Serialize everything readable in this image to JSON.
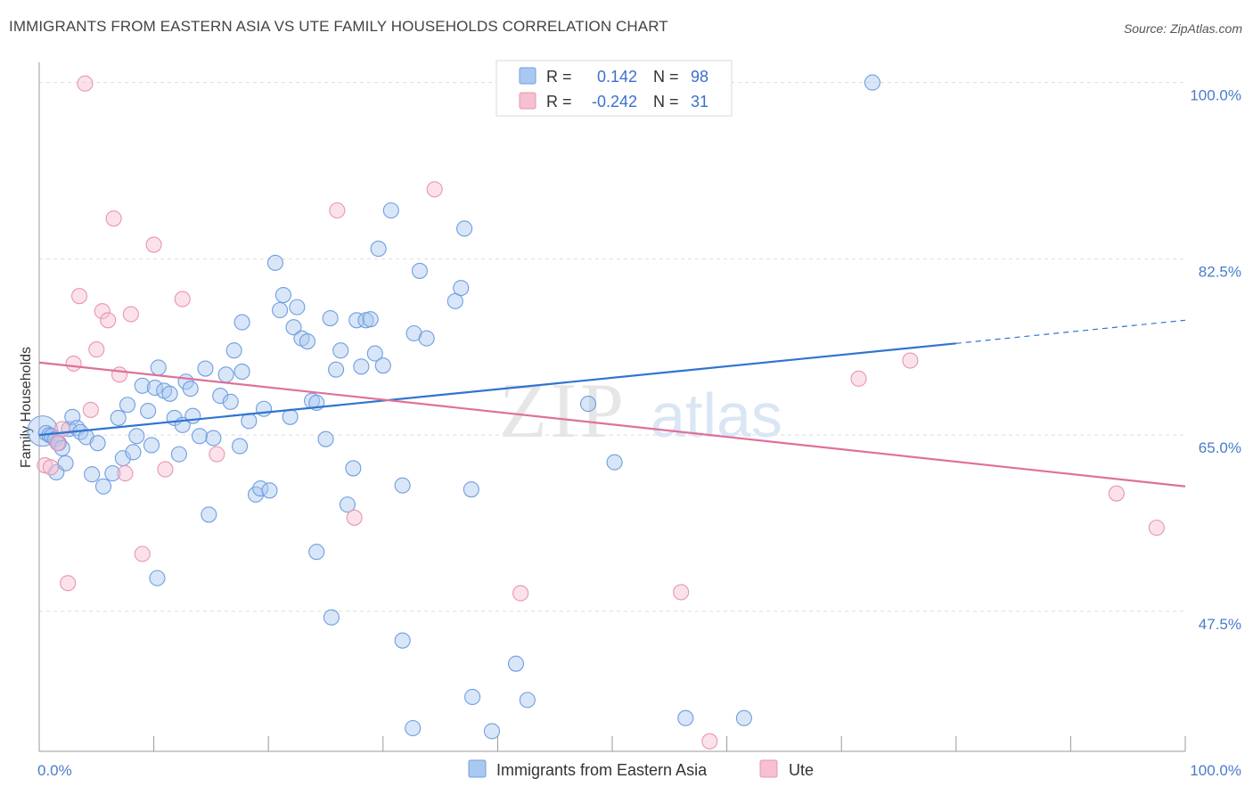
{
  "title": "IMMIGRANTS FROM EASTERN ASIA VS UTE FAMILY HOUSEHOLDS CORRELATION CHART",
  "source": "Source: ZipAtlas.com",
  "watermark": {
    "zip": "ZIP",
    "atlas": "atlas"
  },
  "colors": {
    "blue_fill": "#a9c8f0",
    "blue_stroke": "#6f9ee0",
    "blue_line": "#2f74d0",
    "pink_fill": "#f7bfd0",
    "pink_stroke": "#e895b0",
    "pink_line": "#e0709a",
    "grid": "#dddddd",
    "tick_label": "#4a7cc9"
  },
  "legend": {
    "rows": [
      {
        "r_label": "R =",
        "r_value": "0.142",
        "n_label": "N =",
        "n_value": "98",
        "color": "blue"
      },
      {
        "r_label": "R =",
        "r_value": "-0.242",
        "n_label": "N =",
        "n_value": "31",
        "color": "pink"
      }
    ]
  },
  "chart_data": {
    "type": "scatter",
    "xlabel": "",
    "ylabel": "Family Households",
    "x_ticks": [
      "0.0%",
      "100.0%"
    ],
    "y_ticks": [
      {
        "value": 47.5,
        "label": "47.5%"
      },
      {
        "value": 65.0,
        "label": "65.0%"
      },
      {
        "value": 82.5,
        "label": "82.5%"
      },
      {
        "value": 100.0,
        "label": "100.0%"
      }
    ],
    "xlim": [
      0,
      100
    ],
    "ylim": [
      33.6,
      102
    ],
    "series": [
      {
        "name": "Immigrants from Eastern Asia",
        "color": "blue",
        "trend": {
          "x0": 0,
          "y0": 65.0,
          "x1": 80,
          "y1": 74.1,
          "dash_to_x": 100,
          "dash_to_y": 76.4
        },
        "points": [
          [
            0.3,
            65.4
          ],
          [
            0.6,
            65.2
          ],
          [
            0.9,
            65.0
          ],
          [
            1.1,
            64.9
          ],
          [
            1.4,
            64.6
          ],
          [
            1.7,
            64.2
          ],
          [
            2.0,
            63.7
          ],
          [
            1.5,
            61.3
          ],
          [
            2.3,
            62.2
          ],
          [
            2.6,
            65.6
          ],
          [
            2.9,
            66.8
          ],
          [
            3.3,
            65.7
          ],
          [
            3.6,
            65.3
          ],
          [
            4.1,
            64.8
          ],
          [
            4.6,
            61.1
          ],
          [
            5.1,
            64.2
          ],
          [
            5.6,
            59.9
          ],
          [
            6.4,
            61.2
          ],
          [
            6.9,
            66.7
          ],
          [
            7.3,
            62.7
          ],
          [
            7.7,
            68.0
          ],
          [
            8.2,
            63.3
          ],
          [
            8.5,
            64.9
          ],
          [
            9.0,
            69.9
          ],
          [
            9.5,
            67.4
          ],
          [
            9.8,
            64.0
          ],
          [
            10.1,
            69.7
          ],
          [
            10.4,
            71.7
          ],
          [
            10.9,
            69.4
          ],
          [
            11.4,
            69.1
          ],
          [
            11.8,
            66.7
          ],
          [
            12.2,
            63.1
          ],
          [
            12.5,
            66.0
          ],
          [
            12.8,
            70.3
          ],
          [
            13.2,
            69.6
          ],
          [
            13.4,
            66.9
          ],
          [
            14.0,
            64.9
          ],
          [
            14.5,
            71.6
          ],
          [
            14.8,
            57.1
          ],
          [
            15.2,
            64.7
          ],
          [
            15.8,
            68.9
          ],
          [
            16.3,
            71.0
          ],
          [
            16.7,
            68.3
          ],
          [
            17.0,
            73.4
          ],
          [
            17.5,
            63.9
          ],
          [
            17.7,
            76.2
          ],
          [
            18.3,
            66.4
          ],
          [
            18.9,
            59.1
          ],
          [
            19.3,
            59.7
          ],
          [
            19.6,
            67.6
          ],
          [
            20.1,
            59.5
          ],
          [
            20.6,
            82.1
          ],
          [
            21.0,
            77.4
          ],
          [
            21.3,
            78.9
          ],
          [
            21.9,
            66.8
          ],
          [
            22.2,
            75.7
          ],
          [
            22.5,
            77.7
          ],
          [
            22.9,
            74.6
          ],
          [
            23.4,
            74.3
          ],
          [
            23.8,
            68.4
          ],
          [
            24.2,
            68.2
          ],
          [
            25.0,
            64.6
          ],
          [
            25.4,
            76.6
          ],
          [
            25.9,
            71.5
          ],
          [
            26.3,
            73.4
          ],
          [
            26.9,
            58.1
          ],
          [
            27.4,
            61.7
          ],
          [
            27.7,
            76.4
          ],
          [
            28.1,
            71.8
          ],
          [
            28.5,
            76.4
          ],
          [
            28.9,
            76.5
          ],
          [
            29.3,
            73.1
          ],
          [
            29.6,
            83.5
          ],
          [
            30.0,
            71.9
          ],
          [
            30.7,
            87.3
          ],
          [
            31.7,
            60.0
          ],
          [
            32.7,
            75.1
          ],
          [
            33.2,
            81.3
          ],
          [
            33.8,
            74.6
          ],
          [
            36.3,
            78.3
          ],
          [
            36.8,
            79.6
          ],
          [
            37.1,
            85.5
          ],
          [
            37.7,
            59.6
          ],
          [
            39.5,
            35.6
          ],
          [
            41.6,
            42.3
          ],
          [
            42.6,
            38.7
          ],
          [
            47.9,
            68.1
          ],
          [
            50.2,
            62.3
          ],
          [
            56.4,
            36.9
          ],
          [
            61.5,
            36.9
          ],
          [
            72.7,
            100.0
          ],
          [
            17.7,
            71.3
          ],
          [
            24.2,
            53.4
          ],
          [
            25.5,
            46.9
          ],
          [
            31.7,
            44.6
          ],
          [
            37.8,
            39.0
          ],
          [
            32.6,
            35.9
          ],
          [
            10.3,
            50.8
          ]
        ]
      },
      {
        "name": "Ute",
        "color": "pink",
        "trend": {
          "x0": 0,
          "y0": 72.2,
          "x1": 100,
          "y1": 59.9
        },
        "points": [
          [
            0.5,
            62.0
          ],
          [
            1.0,
            61.8
          ],
          [
            1.6,
            64.2
          ],
          [
            2.0,
            65.6
          ],
          [
            2.5,
            50.3
          ],
          [
            3.0,
            72.1
          ],
          [
            3.5,
            78.8
          ],
          [
            4.0,
            99.9
          ],
          [
            4.5,
            67.5
          ],
          [
            5.0,
            73.5
          ],
          [
            5.5,
            77.3
          ],
          [
            6.0,
            76.4
          ],
          [
            6.5,
            86.5
          ],
          [
            7.0,
            71.0
          ],
          [
            7.5,
            61.2
          ],
          [
            8.0,
            77.0
          ],
          [
            9.0,
            53.2
          ],
          [
            10.0,
            83.9
          ],
          [
            11.0,
            61.6
          ],
          [
            12.5,
            78.5
          ],
          [
            15.5,
            63.1
          ],
          [
            26.0,
            87.3
          ],
          [
            27.5,
            56.8
          ],
          [
            34.5,
            89.4
          ],
          [
            42.0,
            49.3
          ],
          [
            56.0,
            49.4
          ],
          [
            71.5,
            70.6
          ],
          [
            76.0,
            72.4
          ],
          [
            94.0,
            59.2
          ],
          [
            97.5,
            55.8
          ],
          [
            58.5,
            34.6
          ]
        ]
      }
    ]
  }
}
